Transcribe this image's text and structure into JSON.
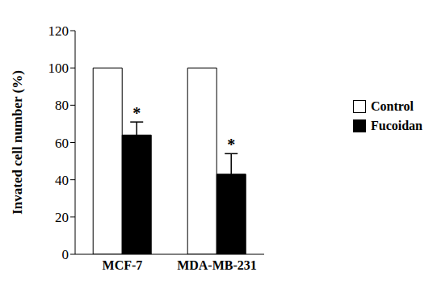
{
  "chart_data": {
    "type": "bar",
    "y_label": "Invated cell number (%)",
    "categories": [
      "MCF-7",
      "MDA-MB-231"
    ],
    "series": [
      {
        "name": "Control",
        "color": "#ffffff",
        "values": [
          100,
          100
        ]
      },
      {
        "name": "Fucoidan",
        "color": "#000000",
        "values": [
          64,
          43
        ],
        "error": [
          7,
          11
        ]
      }
    ],
    "annotations": [
      {
        "text": "*",
        "category": "MCF-7",
        "series": "Fucoidan"
      },
      {
        "text": "*",
        "category": "MDA-MB-231",
        "series": "Fucoidan"
      }
    ],
    "ylim": [
      0,
      120
    ],
    "yticks": [
      0,
      20,
      40,
      60,
      80,
      100,
      120
    ],
    "legend": "upper right",
    "grid": false
  }
}
